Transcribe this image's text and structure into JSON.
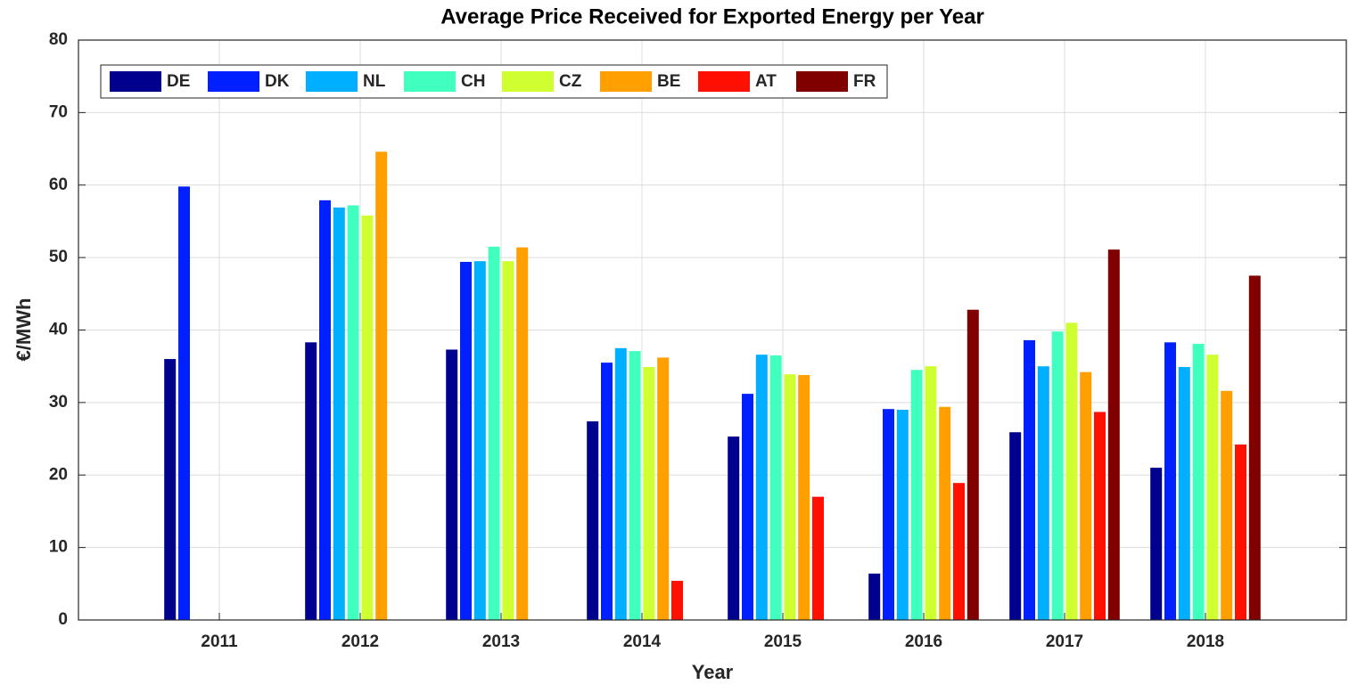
{
  "chart_data": {
    "type": "bar",
    "title": "Average Price Received for Exported Energy per Year",
    "x_label": "Year",
    "y_label": "€/MWh",
    "categories": [
      "2011",
      "2012",
      "2013",
      "2014",
      "2015",
      "2016",
      "2017",
      "2018"
    ],
    "series": [
      {
        "name": "DE",
        "color": "#00008f",
        "values": [
          36.0,
          38.3,
          37.3,
          27.4,
          25.3,
          6.4,
          25.9,
          21.0
        ]
      },
      {
        "name": "DK",
        "color": "#0020ff",
        "values": [
          59.8,
          57.9,
          49.4,
          35.5,
          31.2,
          29.1,
          38.6,
          38.3
        ]
      },
      {
        "name": "NL",
        "color": "#00afff",
        "values": [
          null,
          56.9,
          49.5,
          37.5,
          36.6,
          29.0,
          35.0,
          34.9
        ]
      },
      {
        "name": "CH",
        "color": "#40ffbf",
        "values": [
          null,
          57.2,
          51.5,
          37.1,
          36.5,
          34.5,
          39.8,
          38.1
        ]
      },
      {
        "name": "CZ",
        "color": "#cfff30",
        "values": [
          null,
          55.8,
          49.5,
          34.9,
          33.9,
          35.0,
          41.0,
          36.6
        ]
      },
      {
        "name": "BE",
        "color": "#ffa000",
        "values": [
          null,
          64.6,
          51.4,
          36.2,
          33.8,
          29.4,
          34.2,
          31.6
        ]
      },
      {
        "name": "AT",
        "color": "#ff1000",
        "values": [
          null,
          null,
          null,
          5.4,
          17.0,
          18.9,
          28.7,
          24.2
        ]
      },
      {
        "name": "FR",
        "color": "#800000",
        "values": [
          null,
          null,
          null,
          null,
          null,
          42.8,
          51.1,
          47.5
        ]
      }
    ],
    "ylim": [
      0,
      80
    ],
    "yticks": [
      0,
      10,
      20,
      30,
      40,
      50,
      60,
      70,
      80
    ],
    "grid": true,
    "legend": "top-left"
  }
}
